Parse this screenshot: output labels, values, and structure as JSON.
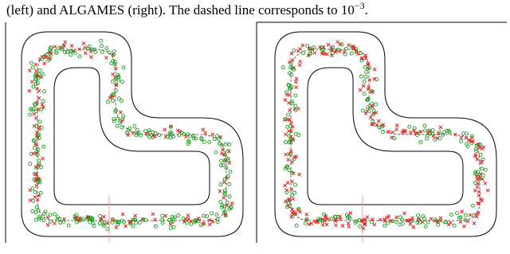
{
  "caption": {
    "text": "(left) and ALGAMES (right). The dashed line corresponds to ",
    "base": "10",
    "exponent": "−3",
    "end": "."
  }
}
